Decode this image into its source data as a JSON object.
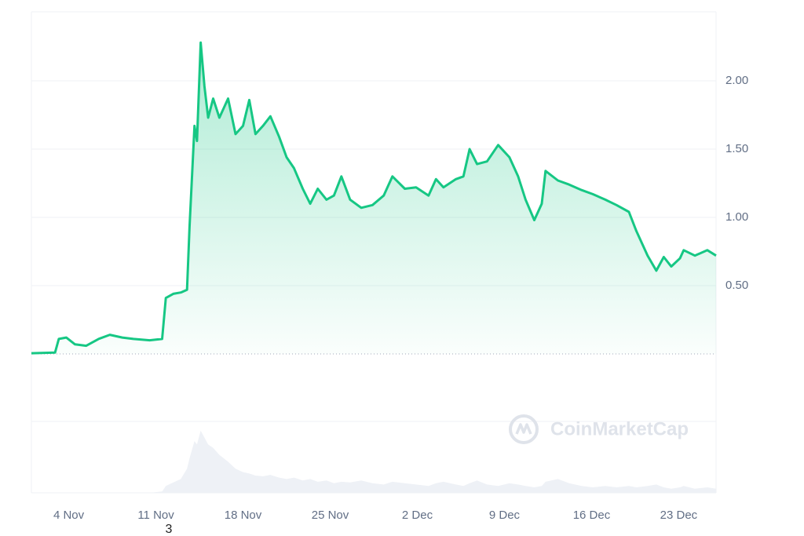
{
  "chart_data": {
    "type": "line",
    "watermark": "CoinMarketCap",
    "annotation": "3",
    "x": [
      0,
      1.9,
      2.2,
      2.8,
      3.5,
      4.4,
      5.4,
      6.3,
      7.3,
      8.2,
      9.5,
      10.5,
      10.8,
      11.4,
      12.0,
      12.5,
      12.7,
      13.1,
      13.3,
      13.6,
      13.9,
      14.2,
      14.6,
      15.1,
      15.8,
      16.4,
      17.0,
      17.5,
      18.0,
      18.6,
      19.2,
      19.9,
      20.5,
      21.1,
      21.8,
      22.4,
      23.0,
      23.7,
      24.3,
      24.9,
      25.6,
      26.5,
      27.4,
      28.3,
      29.0,
      30.0,
      30.9,
      31.9,
      32.5,
      33.1,
      34.1,
      34.7,
      35.2,
      35.8,
      36.6,
      37.5,
      38.4,
      39.1,
      39.7,
      40.4,
      41.0,
      41.3,
      42.3,
      43.2,
      44.2,
      45.1,
      46.1,
      47.0,
      48.0,
      48.6,
      49.5,
      50.2,
      50.8,
      51.4,
      52.1,
      52.4,
      53.3,
      54.3,
      55.0
    ],
    "series": [
      {
        "color": "#16c784",
        "values": [
          0.005,
          0.01,
          0.11,
          0.12,
          0.07,
          0.06,
          0.11,
          0.14,
          0.12,
          0.11,
          0.1,
          0.11,
          0.41,
          0.44,
          0.45,
          0.47,
          0.93,
          1.67,
          1.56,
          2.28,
          1.96,
          1.73,
          1.87,
          1.73,
          1.87,
          1.61,
          1.67,
          1.86,
          1.61,
          1.67,
          1.74,
          1.59,
          1.44,
          1.36,
          1.21,
          1.1,
          1.21,
          1.13,
          1.16,
          1.3,
          1.13,
          1.07,
          1.09,
          1.16,
          1.3,
          1.21,
          1.22,
          1.16,
          1.28,
          1.22,
          1.28,
          1.3,
          1.5,
          1.39,
          1.41,
          1.53,
          1.44,
          1.3,
          1.13,
          0.98,
          1.1,
          1.34,
          1.27,
          1.24,
          1.2,
          1.17,
          1.13,
          1.09,
          1.04,
          0.9,
          0.72,
          0.61,
          0.71,
          0.64,
          0.7,
          0.76,
          0.72,
          0.76,
          0.72
        ]
      },
      {
        "color": "#eef1f6",
        "axis": "y2",
        "values": [
          0,
          0,
          0,
          0,
          0,
          0,
          0,
          0,
          0,
          0,
          0,
          2,
          10,
          15,
          20,
          35,
          50,
          75,
          70,
          90,
          80,
          70,
          65,
          55,
          45,
          35,
          30,
          28,
          25,
          24,
          26,
          22,
          20,
          22,
          18,
          20,
          16,
          18,
          14,
          16,
          15,
          18,
          14,
          12,
          16,
          14,
          12,
          10,
          14,
          16,
          12,
          10,
          14,
          18,
          12,
          10,
          14,
          12,
          10,
          8,
          10,
          16,
          20,
          14,
          10,
          8,
          10,
          8,
          10,
          8,
          10,
          12,
          8,
          6,
          8,
          10,
          6,
          8,
          6
        ]
      }
    ],
    "xlim": [
      0,
      55
    ],
    "xticks": [
      {
        "value": 3,
        "label": "4 Nov"
      },
      {
        "value": 10,
        "label": "11 Nov"
      },
      {
        "value": 17,
        "label": "18 Nov"
      },
      {
        "value": 24,
        "label": "25 Nov"
      },
      {
        "value": 31,
        "label": "2 Dec"
      },
      {
        "value": 38,
        "label": "9 Dec"
      },
      {
        "value": 45,
        "label": "16 Dec"
      },
      {
        "value": 52,
        "label": "23 Dec"
      }
    ],
    "ylim": [
      0,
      2.5
    ],
    "yticks": [
      {
        "value": 0.5,
        "label": "0.50"
      },
      {
        "value": 1,
        "label": "1.00"
      },
      {
        "value": 1.5,
        "label": "1.50"
      },
      {
        "value": 2,
        "label": "2.00"
      }
    ],
    "y2lim": [
      0,
      100
    ],
    "grid": true
  }
}
